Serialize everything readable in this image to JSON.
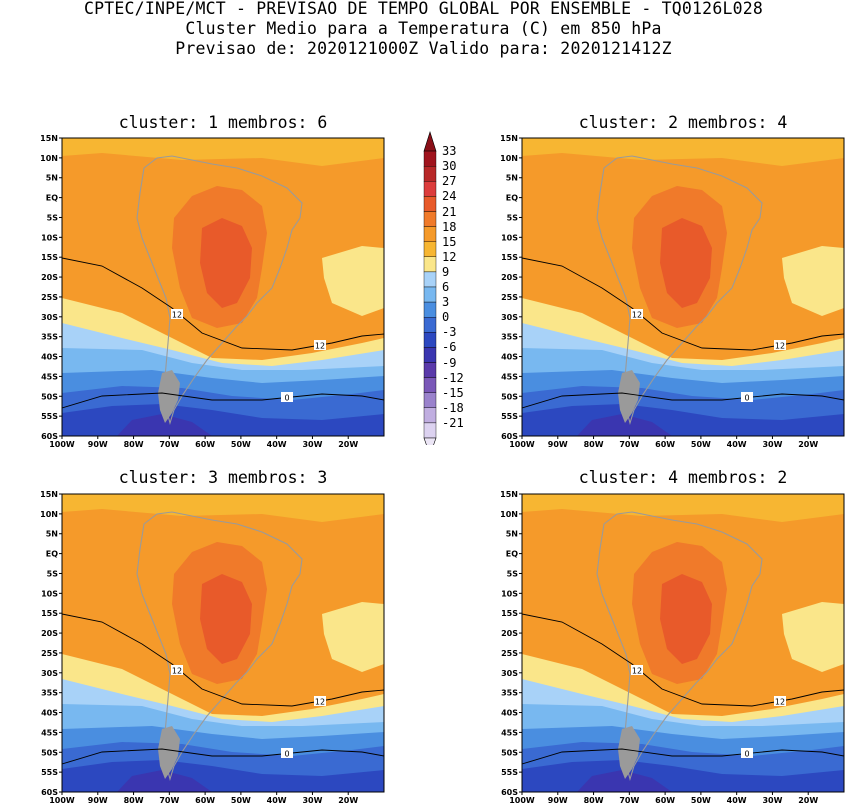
{
  "header": {
    "line1": "CPTEC/INPE/MCT - PREVISAO DE TEMPO GLOBAL POR ENSEMBLE - TQ0126L028",
    "line2": "Cluster Medio para a Temperatura (C) em 850 hPa",
    "line3": "Previsao de: 2020121000Z   Valido para: 2020121412Z"
  },
  "panels": [
    {
      "title": "cluster: 1  membros: 6"
    },
    {
      "title": "cluster: 2  membros: 4"
    },
    {
      "title": "cluster: 3  membros: 3"
    },
    {
      "title": "cluster: 4  membros: 2"
    }
  ],
  "axes": {
    "lat_labels": [
      "15N",
      "10N",
      "5N",
      "EQ",
      "5S",
      "10S",
      "15S",
      "20S",
      "25S",
      "30S",
      "35S",
      "40S",
      "45S",
      "50S",
      "55S",
      "60S"
    ],
    "lon_labels": [
      "100W",
      "90W",
      "80W",
      "70W",
      "60W",
      "50W",
      "40W",
      "30W",
      "20W"
    ]
  },
  "contour_labels": {
    "warm": "12",
    "cold": "0"
  },
  "colorbar": {
    "labels": [
      "33",
      "30",
      "27",
      "24",
      "21",
      "18",
      "15",
      "12",
      "9",
      "6",
      "3",
      "0",
      "-3",
      "-6",
      "-9",
      "-12",
      "-15",
      "-18",
      "-21"
    ],
    "colors": [
      "#a0141e",
      "#b82828",
      "#dc3c3c",
      "#e85a2a",
      "#f07a2a",
      "#f59a2a",
      "#f7b632",
      "#fae68a",
      "#a8d2f8",
      "#78b8f0",
      "#4a8ee0",
      "#3a6ad2",
      "#2c48c0",
      "#3a36b0",
      "#5a3aaa",
      "#7a58b8",
      "#9a82cc",
      "#c0aee0",
      "#dcd2f0"
    ]
  },
  "map_colors": {
    "c21_24": "#e85a2a",
    "c18_21": "#f07a2a",
    "c15_18": "#f59a2a",
    "c12_15": "#f7b632",
    "c9_12": "#fae68a",
    "c6_9": "#a8d2f8",
    "c3_6": "#78b8f0",
    "c0_3": "#4a8ee0",
    "cm3_0": "#3a6ad2",
    "cm6_m3": "#2c48c0",
    "cm9_m6": "#3a36b0",
    "land_gray": "#9a9a9a"
  }
}
